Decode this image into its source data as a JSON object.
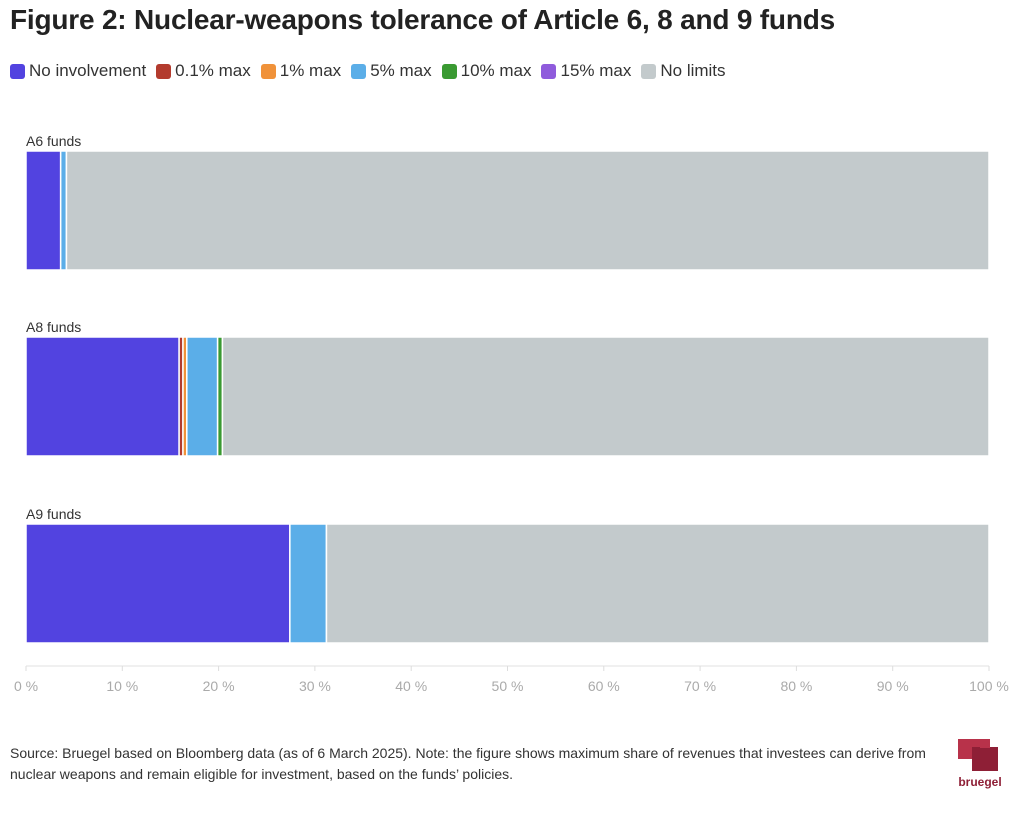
{
  "title": "Figure 2: Nuclear-weapons tolerance of Article 6, 8 and 9 funds",
  "source": "Source: Bruegel based on Bloomberg data (as of 6 March 2025). Note: the figure shows maximum share of revenues that investees can derive from nuclear weapons and remain eligible for investment, based on the funds’ policies.",
  "logo_text": "bruegel",
  "colors": {
    "No involvement": "#5243e0",
    "0.1% max": "#b33b2e",
    "1% max": "#f0923a",
    "5% max": "#5baee8",
    "10% max": "#3a9a32",
    "15% max": "#8f5bdc",
    "No limits": "#c3cacc"
  },
  "chart_data": {
    "type": "bar",
    "orientation": "horizontal",
    "stacked": true,
    "categories": [
      "A6 funds",
      "A8 funds",
      "A9 funds"
    ],
    "series": [
      {
        "name": "No involvement",
        "values": [
          3.6,
          15.9,
          27.4
        ]
      },
      {
        "name": "0.1% max",
        "values": [
          0,
          0.4,
          0
        ]
      },
      {
        "name": "1% max",
        "values": [
          0,
          0.4,
          0
        ]
      },
      {
        "name": "5% max",
        "values": [
          0.6,
          3.2,
          3.8
        ]
      },
      {
        "name": "10% max",
        "values": [
          0,
          0.5,
          0
        ]
      },
      {
        "name": "15% max",
        "values": [
          0,
          0,
          0
        ]
      },
      {
        "name": "No limits",
        "values": [
          95.8,
          79.6,
          68.8
        ]
      }
    ],
    "xlim": [
      0,
      100
    ],
    "xticks": [
      0,
      10,
      20,
      30,
      40,
      50,
      60,
      70,
      80,
      90,
      100
    ],
    "xtick_labels": [
      "0 %",
      "10 %",
      "20 %",
      "30 %",
      "40 %",
      "50 %",
      "60 %",
      "70 %",
      "80 %",
      "90 %",
      "100 %"
    ],
    "legend_position": "top-left",
    "grid": false
  }
}
